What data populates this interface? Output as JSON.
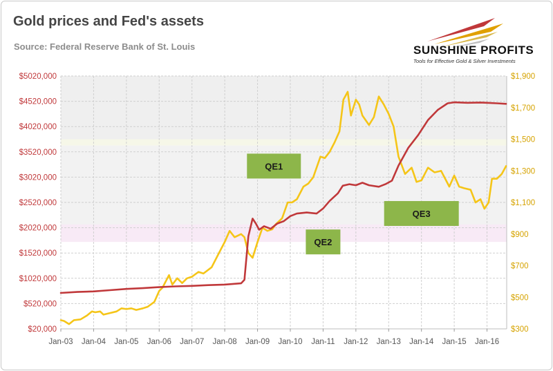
{
  "header": {
    "title": "Gold prices and Fed's assets",
    "subtitle": "Source: Federal Reserve Bank of St. Louis"
  },
  "logo": {
    "name": "SUNSHINE PROFITS",
    "tagline": "Tools for Effective Gold & Silver Investments"
  },
  "colors": {
    "fed_line": "#c0383a",
    "gold_line": "#f5c518",
    "qe_box": "#8db64a",
    "left_axis_text": "#c0383a",
    "right_axis_text": "#d6a300"
  },
  "chart_data": {
    "type": "line",
    "title": "Gold prices and Fed's assets",
    "x_range": [
      2003.0,
      2016.6
    ],
    "x_tick_labels": [
      "Jan-03",
      "Jan-04",
      "Jan-05",
      "Jan-06",
      "Jan-07",
      "Jan-08",
      "Jan-09",
      "Jan-10",
      "Jan-11",
      "Jan-12",
      "Jan-13",
      "Jan-14",
      "Jan-15",
      "Jan-16"
    ],
    "x_tick_values": [
      2003,
      2004,
      2005,
      2006,
      2007,
      2008,
      2009,
      2010,
      2011,
      2012,
      2013,
      2014,
      2015,
      2016
    ],
    "y_left": {
      "range": [
        20000,
        5020000
      ],
      "ticks": [
        20000,
        520000,
        1020000,
        1520000,
        2020000,
        2520000,
        3020000,
        3520000,
        4020000,
        4520000,
        5020000
      ],
      "tick_labels": [
        "$20,000",
        "$520,000",
        "$1020,000",
        "$1520,000",
        "$2020,000",
        "$2520,000",
        "$3020,000",
        "$3520,000",
        "$4020,000",
        "$4520,000",
        "$5020,000"
      ]
    },
    "y_right": {
      "range": [
        300,
        1900
      ],
      "ticks": [
        300,
        500,
        700,
        900,
        1100,
        1300,
        1500,
        1700,
        1900
      ],
      "tick_labels": [
        "$300",
        "$500",
        "$700",
        "$900",
        "$1,100",
        "$1,300",
        "$1,500",
        "$1,700",
        "$1,900"
      ]
    },
    "series": [
      {
        "name": "Fed's assets",
        "axis": "left",
        "color": "#c0383a",
        "points": [
          [
            2003.0,
            730000
          ],
          [
            2003.5,
            750000
          ],
          [
            2004.0,
            760000
          ],
          [
            2004.5,
            785000
          ],
          [
            2005.0,
            810000
          ],
          [
            2005.5,
            825000
          ],
          [
            2006.0,
            845000
          ],
          [
            2006.5,
            860000
          ],
          [
            2007.0,
            870000
          ],
          [
            2007.5,
            885000
          ],
          [
            2008.0,
            895000
          ],
          [
            2008.5,
            920000
          ],
          [
            2008.6,
            990000
          ],
          [
            2008.72,
            1850000
          ],
          [
            2008.85,
            2200000
          ],
          [
            2008.95,
            2100000
          ],
          [
            2009.05,
            1980000
          ],
          [
            2009.2,
            2050000
          ],
          [
            2009.4,
            2000000
          ],
          [
            2009.6,
            2100000
          ],
          [
            2009.8,
            2150000
          ],
          [
            2010.0,
            2250000
          ],
          [
            2010.2,
            2300000
          ],
          [
            2010.5,
            2320000
          ],
          [
            2010.8,
            2300000
          ],
          [
            2011.0,
            2400000
          ],
          [
            2011.2,
            2550000
          ],
          [
            2011.45,
            2700000
          ],
          [
            2011.6,
            2850000
          ],
          [
            2011.8,
            2880000
          ],
          [
            2012.0,
            2860000
          ],
          [
            2012.2,
            2910000
          ],
          [
            2012.4,
            2860000
          ],
          [
            2012.7,
            2830000
          ],
          [
            2012.9,
            2880000
          ],
          [
            2013.1,
            2950000
          ],
          [
            2013.3,
            3250000
          ],
          [
            2013.6,
            3600000
          ],
          [
            2013.9,
            3850000
          ],
          [
            2014.2,
            4150000
          ],
          [
            2014.5,
            4350000
          ],
          [
            2014.8,
            4480000
          ],
          [
            2015.0,
            4500000
          ],
          [
            2015.4,
            4490000
          ],
          [
            2015.8,
            4495000
          ],
          [
            2016.0,
            4490000
          ],
          [
            2016.3,
            4480000
          ],
          [
            2016.58,
            4470000
          ]
        ]
      },
      {
        "name": "Gold price",
        "axis": "right",
        "color": "#f5c518",
        "points": [
          [
            2003.0,
            355
          ],
          [
            2003.1,
            350
          ],
          [
            2003.25,
            330
          ],
          [
            2003.4,
            355
          ],
          [
            2003.6,
            360
          ],
          [
            2003.8,
            385
          ],
          [
            2003.95,
            410
          ],
          [
            2004.05,
            405
          ],
          [
            2004.2,
            410
          ],
          [
            2004.3,
            390
          ],
          [
            2004.5,
            400
          ],
          [
            2004.7,
            410
          ],
          [
            2004.85,
            430
          ],
          [
            2005.0,
            425
          ],
          [
            2005.15,
            430
          ],
          [
            2005.3,
            420
          ],
          [
            2005.5,
            430
          ],
          [
            2005.65,
            440
          ],
          [
            2005.85,
            470
          ],
          [
            2006.0,
            540
          ],
          [
            2006.1,
            560
          ],
          [
            2006.3,
            640
          ],
          [
            2006.4,
            580
          ],
          [
            2006.55,
            620
          ],
          [
            2006.7,
            590
          ],
          [
            2006.85,
            620
          ],
          [
            2007.0,
            630
          ],
          [
            2007.2,
            660
          ],
          [
            2007.35,
            650
          ],
          [
            2007.6,
            690
          ],
          [
            2007.8,
            770
          ],
          [
            2008.0,
            850
          ],
          [
            2008.15,
            920
          ],
          [
            2008.3,
            880
          ],
          [
            2008.5,
            900
          ],
          [
            2008.6,
            880
          ],
          [
            2008.72,
            780
          ],
          [
            2008.85,
            750
          ],
          [
            2009.0,
            850
          ],
          [
            2009.15,
            940
          ],
          [
            2009.3,
            920
          ],
          [
            2009.45,
            930
          ],
          [
            2009.55,
            960
          ],
          [
            2009.75,
            1000
          ],
          [
            2009.92,
            1100
          ],
          [
            2010.05,
            1100
          ],
          [
            2010.2,
            1120
          ],
          [
            2010.4,
            1200
          ],
          [
            2010.55,
            1220
          ],
          [
            2010.7,
            1260
          ],
          [
            2010.92,
            1390
          ],
          [
            2011.05,
            1380
          ],
          [
            2011.2,
            1420
          ],
          [
            2011.35,
            1480
          ],
          [
            2011.5,
            1550
          ],
          [
            2011.62,
            1750
          ],
          [
            2011.75,
            1800
          ],
          [
            2011.85,
            1650
          ],
          [
            2012.0,
            1750
          ],
          [
            2012.1,
            1720
          ],
          [
            2012.2,
            1650
          ],
          [
            2012.4,
            1590
          ],
          [
            2012.55,
            1640
          ],
          [
            2012.7,
            1770
          ],
          [
            2012.85,
            1720
          ],
          [
            2013.0,
            1660
          ],
          [
            2013.15,
            1580
          ],
          [
            2013.3,
            1390
          ],
          [
            2013.5,
            1280
          ],
          [
            2013.7,
            1320
          ],
          [
            2013.85,
            1230
          ],
          [
            2014.0,
            1240
          ],
          [
            2014.2,
            1320
          ],
          [
            2014.4,
            1290
          ],
          [
            2014.6,
            1300
          ],
          [
            2014.85,
            1200
          ],
          [
            2015.0,
            1270
          ],
          [
            2015.15,
            1200
          ],
          [
            2015.3,
            1190
          ],
          [
            2015.5,
            1180
          ],
          [
            2015.65,
            1100
          ],
          [
            2015.8,
            1120
          ],
          [
            2015.92,
            1060
          ],
          [
            2016.05,
            1100
          ],
          [
            2016.15,
            1250
          ],
          [
            2016.3,
            1250
          ],
          [
            2016.45,
            1280
          ],
          [
            2016.58,
            1330
          ]
        ]
      }
    ],
    "annotations": [
      {
        "label": "QE1",
        "x_center": 2009.5,
        "y_right": 1330
      },
      {
        "label": "QE2",
        "x_center": 2011.0,
        "y_right": 850
      },
      {
        "label": "QE3",
        "x_center": 2014.0,
        "y_right": 1030
      }
    ],
    "background_bands": [
      {
        "from": 1500,
        "to": 1900,
        "color": "#efefef"
      },
      {
        "from": 1460,
        "to": 1500,
        "color": "#f6f7e8"
      },
      {
        "from": 960,
        "to": 1460,
        "color": "#f2f2f2"
      },
      {
        "from": 850,
        "to": 960,
        "color": "#f8eaf6"
      }
    ],
    "grid": true
  }
}
